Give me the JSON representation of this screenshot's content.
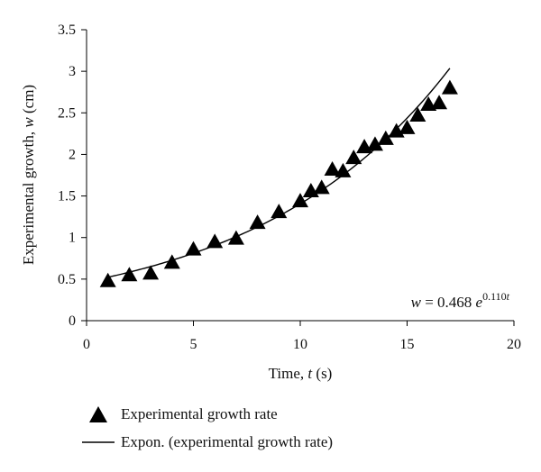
{
  "chart_data": {
    "type": "scatter",
    "xlabel_main": "Time, ",
    "xlabel_var": "t",
    "xlabel_unit": " (s)",
    "ylabel_main": "Experimental growth, ",
    "ylabel_var": "w",
    "ylabel_unit": " (cm)",
    "xlim": [
      0,
      20
    ],
    "ylim": [
      0,
      3.5
    ],
    "x_ticks": [
      "0",
      "5",
      "10",
      "15",
      "20"
    ],
    "y_ticks": [
      "0",
      "0.5",
      "1",
      "1.5",
      "2",
      "2.5",
      "3",
      "3.5"
    ],
    "grid": false,
    "legend_position": "bottom",
    "series": [
      {
        "name": "Experimental growth rate",
        "marker": "triangle",
        "color": "#000000",
        "x": [
          1,
          2,
          3,
          4,
          5,
          6,
          7,
          8,
          9,
          10,
          10.5,
          11,
          11.5,
          12,
          12.5,
          13,
          13.5,
          14,
          14.5,
          15,
          15.5,
          16,
          16.5,
          17
        ],
        "y": [
          0.48,
          0.55,
          0.57,
          0.7,
          0.86,
          0.95,
          0.99,
          1.18,
          1.31,
          1.44,
          1.56,
          1.6,
          1.82,
          1.8,
          1.96,
          2.09,
          2.12,
          2.19,
          2.28,
          2.32,
          2.47,
          2.6,
          2.62,
          2.8
        ]
      },
      {
        "name": "Expon. (experimental growth rate)",
        "type": "line",
        "color": "#000000",
        "fit": {
          "a": 0.468,
          "b": 0.11
        },
        "x_range": [
          1,
          17
        ]
      }
    ],
    "annotation": {
      "lhs": "w",
      "eq": " = 0.468 ",
      "base": "e",
      "exp": "0.110",
      "exp_var": "t"
    }
  }
}
